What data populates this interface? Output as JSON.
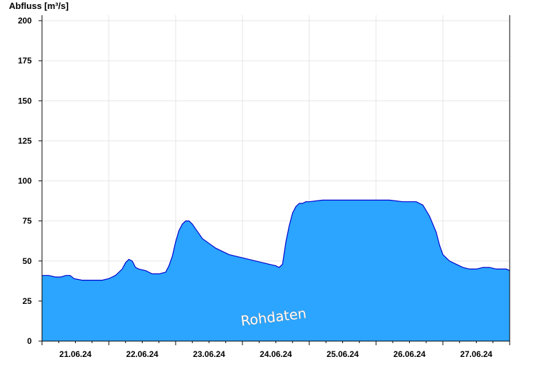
{
  "chart_data": {
    "type": "area",
    "ylabel": "Abfluss [m³/s]",
    "ylim": [
      0,
      200
    ],
    "yticks": [
      "0",
      "25",
      "50",
      "75",
      "100",
      "125",
      "150",
      "175",
      "200"
    ],
    "xlim": [
      0,
      7
    ],
    "xticks": [
      {
        "label": "21.06.24",
        "x": 0.5
      },
      {
        "label": "22.06.24",
        "x": 1.5
      },
      {
        "label": "23.06.24",
        "x": 2.5
      },
      {
        "label": "24.06.24",
        "x": 3.5
      },
      {
        "label": "25.06.24",
        "x": 4.5
      },
      {
        "label": "26.06.24",
        "x": 5.5
      },
      {
        "label": "27.06.24",
        "x": 6.5
      }
    ],
    "day_boundaries": [
      1,
      2,
      3,
      4,
      5,
      6
    ],
    "grid": true,
    "annotation": "Rohdaten",
    "fill_color": "#2ba5ff",
    "line_color": "#0000cc",
    "series": [
      {
        "x": [
          0,
          0.1,
          0.2,
          0.28,
          0.36,
          0.42,
          0.48,
          0.6,
          0.72,
          0.8,
          0.9,
          1.0,
          1.05,
          1.1,
          1.15,
          1.2,
          1.25,
          1.3,
          1.35,
          1.4,
          1.45,
          1.55,
          1.65,
          1.75,
          1.85,
          1.9,
          1.95,
          2.0,
          2.05,
          2.1,
          2.15,
          2.2,
          2.25,
          2.3,
          2.35,
          2.4,
          2.5,
          2.6,
          2.7,
          2.8,
          2.9,
          3.0,
          3.2,
          3.4,
          3.5,
          3.55,
          3.6,
          3.65,
          3.7,
          3.75,
          3.8,
          3.85,
          3.9,
          3.95,
          4.0,
          4.2,
          4.4,
          4.6,
          4.8,
          5.0,
          5.2,
          5.4,
          5.55,
          5.6,
          5.7,
          5.8,
          5.9,
          5.95,
          6.0,
          6.1,
          6.2,
          6.3,
          6.4,
          6.5,
          6.6,
          6.7,
          6.8,
          6.9,
          6.95,
          7.0
        ],
        "y": [
          41,
          41,
          40,
          40,
          41,
          41,
          39,
          38,
          38,
          38,
          38,
          39,
          40,
          41,
          43,
          45,
          49,
          51,
          50,
          46,
          45,
          44,
          42,
          42,
          43,
          47,
          53,
          62,
          69,
          73,
          75,
          75,
          73,
          70,
          67,
          64,
          61,
          58,
          56,
          54,
          53,
          52,
          50,
          48,
          47,
          46,
          48,
          62,
          72,
          80,
          84,
          86,
          86,
          87,
          87,
          88,
          88,
          88,
          88,
          88,
          88,
          87,
          87,
          87,
          85,
          78,
          68,
          60,
          54,
          50,
          48,
          46,
          45,
          45,
          46,
          46,
          45,
          45,
          45,
          44
        ]
      }
    ]
  }
}
